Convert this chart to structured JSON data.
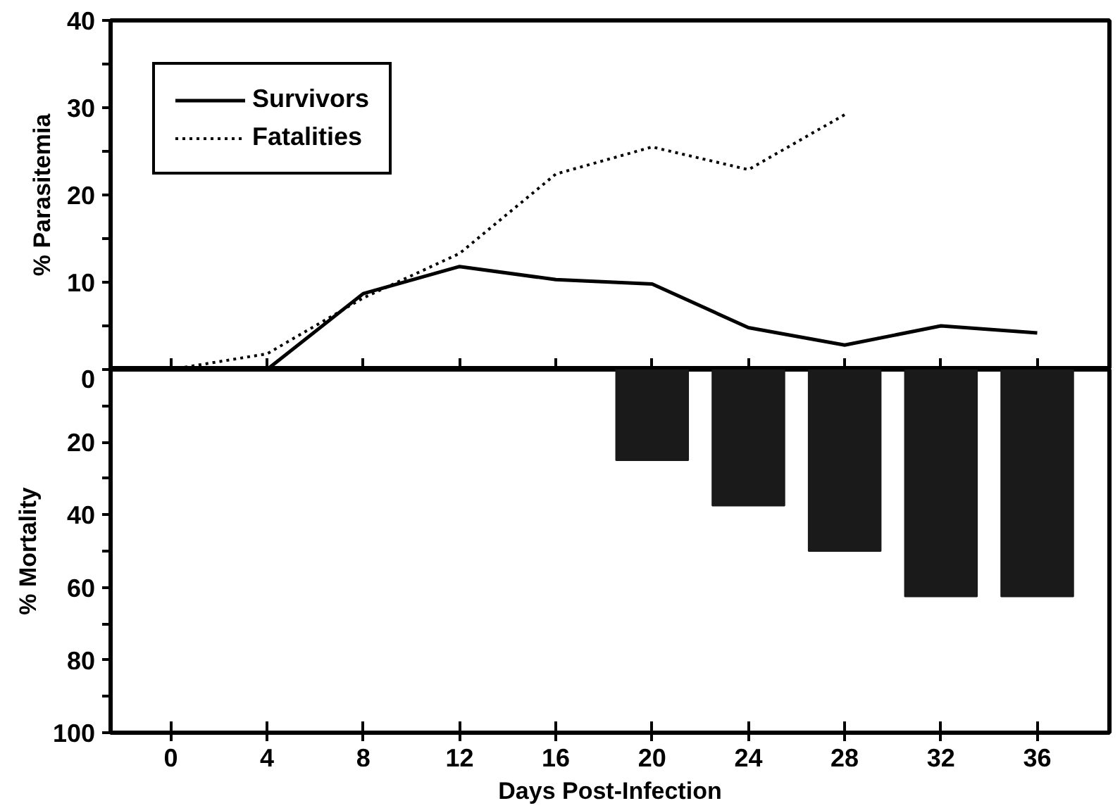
{
  "chart_data": [
    {
      "type": "line",
      "ylabel": "% Parasitemia",
      "x": [
        0,
        4,
        8,
        12,
        16,
        20,
        24,
        28,
        32,
        36
      ],
      "series": [
        {
          "name": "Survivors",
          "color": "#000000",
          "line_style": "solid",
          "values": [
            0,
            0,
            8.7,
            11.8,
            10.3,
            9.8,
            4.8,
            2.8,
            5.0,
            4.2
          ]
        },
        {
          "name": "Fatalities",
          "color": "#000000",
          "line_style": "dotted",
          "values": [
            0,
            1.8,
            8.2,
            13.3,
            22.4,
            25.5,
            22.9,
            29.2,
            null,
            null
          ]
        }
      ],
      "xlim": [
        -2.5,
        39
      ],
      "xticks": [
        {
          "value": 0,
          "label": null
        },
        {
          "value": 4,
          "label": null
        },
        {
          "value": 8,
          "label": null
        },
        {
          "value": 12,
          "label": null
        },
        {
          "value": 16,
          "label": null
        },
        {
          "value": 20,
          "label": null
        },
        {
          "value": 24,
          "label": null
        },
        {
          "value": 28,
          "label": null
        },
        {
          "value": 32,
          "label": null
        },
        {
          "value": 36,
          "label": null
        }
      ],
      "ylim": [
        0,
        40
      ],
      "yticks": [
        {
          "value": 0,
          "label": null
        },
        {
          "value": 5,
          "label": null
        },
        10,
        {
          "value": 15,
          "label": null
        },
        20,
        {
          "value": 25,
          "label": null
        },
        30,
        {
          "value": 35,
          "label": null
        },
        40
      ],
      "tick_labels": "y",
      "legend": "top left",
      "grid": false,
      "marker": "none"
    },
    {
      "type": "bar",
      "ylabel": "% Mortality",
      "xlabel": "Days Post-Infection",
      "x": [
        20,
        24,
        28,
        32,
        36
      ],
      "values": [
        25,
        37.5,
        50,
        62.5,
        62.5
      ],
      "color": "#1a1a1a",
      "xlim": [
        -2.5,
        39
      ],
      "xticks": [
        0,
        4,
        8,
        12,
        16,
        20,
        24,
        28,
        32,
        36
      ],
      "ylim": [
        100,
        0
      ],
      "yticks": [
        0,
        {
          "value": 10,
          "label": null
        },
        20,
        {
          "value": 30,
          "label": null
        },
        40,
        {
          "value": 50,
          "label": null
        },
        60,
        {
          "value": 70,
          "label": null
        },
        80,
        {
          "value": 90,
          "label": null
        },
        100
      ],
      "grid": false
    }
  ]
}
